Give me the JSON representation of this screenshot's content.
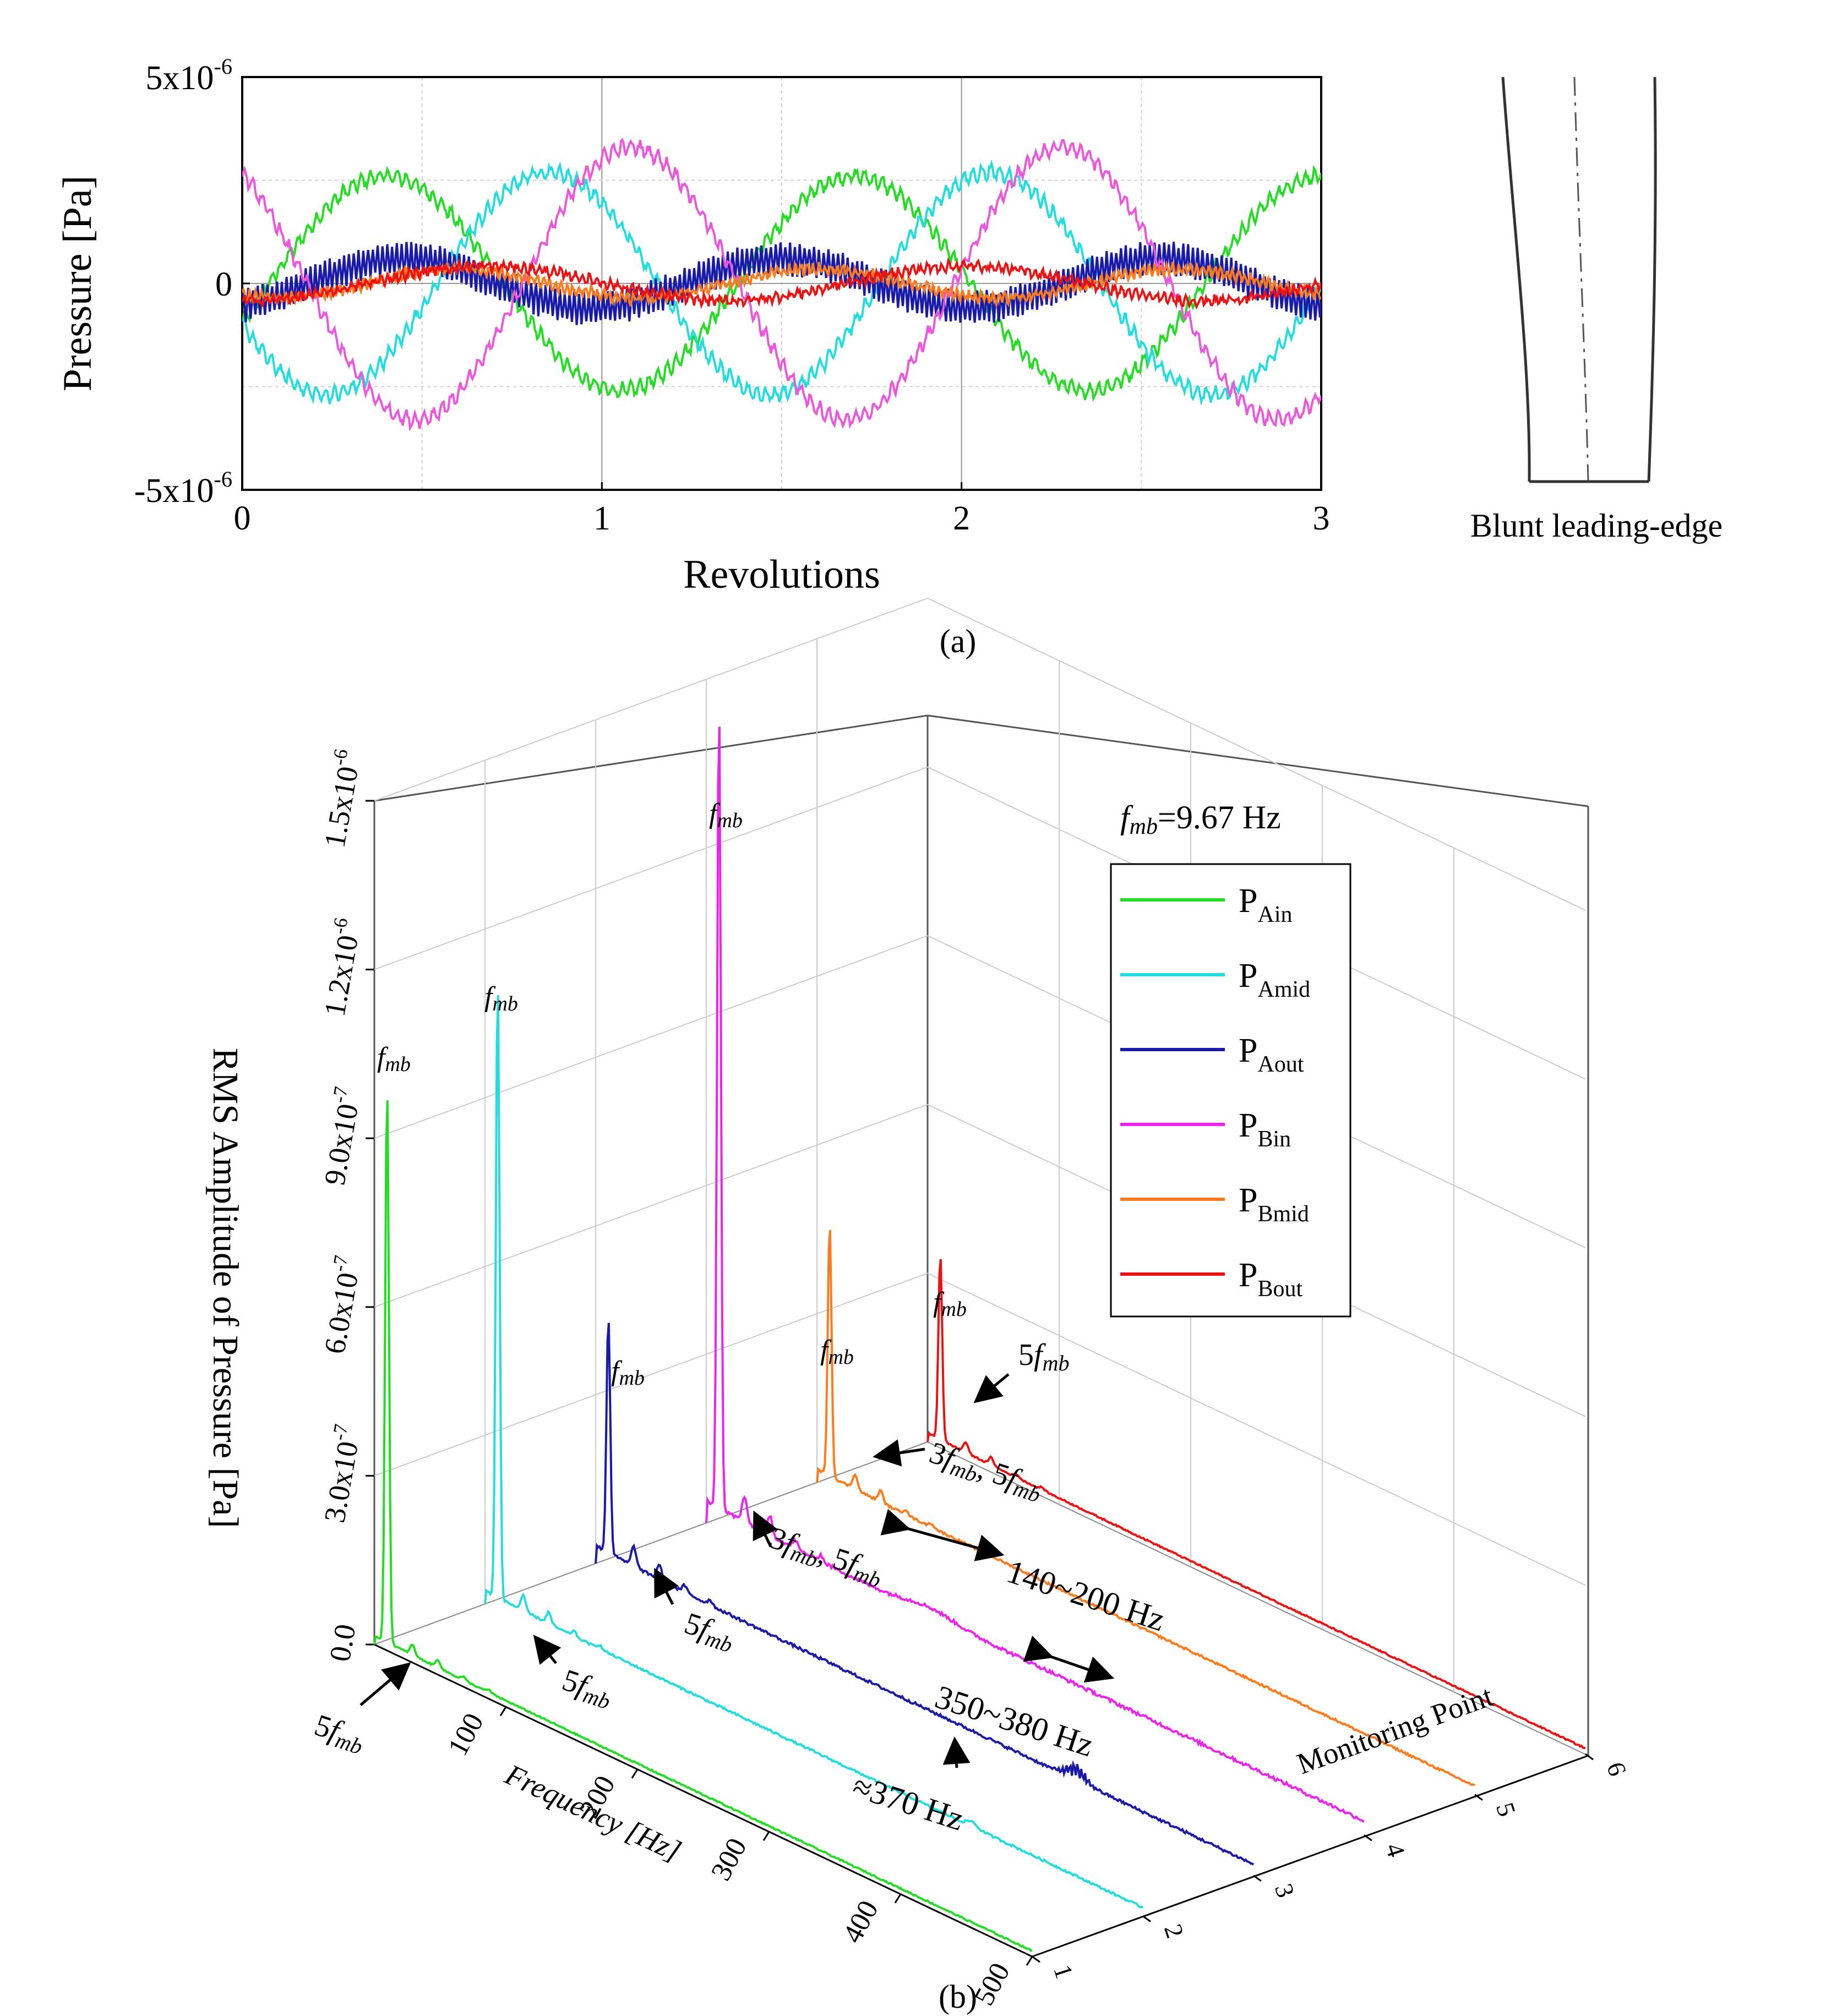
{
  "chart_data": [
    {
      "id": "a",
      "type": "line",
      "xlabel": "Revolutions",
      "ylabel": "Pressure [Pa]",
      "xlim": [
        0,
        3
      ],
      "ylim": [
        -5e-06,
        5e-06
      ],
      "xticks": [
        "0",
        "1",
        "2",
        "3"
      ],
      "yticks": [
        {
          "value": 5e-06,
          "mantissa": "5x10",
          "exp": "-6"
        },
        {
          "value": 0,
          "mantissa": "0",
          "exp": ""
        },
        {
          "value": -5e-06,
          "mantissa": "-5x10",
          "exp": "-6"
        }
      ],
      "series": [
        {
          "name": "PAin",
          "color": "#22dd22",
          "amplitude": 2.6e-06,
          "period": 1.3,
          "phase": 0.4,
          "ripple": 1.5e-07,
          "ripple_cycles": 40
        },
        {
          "name": "PAmid",
          "color": "#22dddd",
          "amplitude": 2.7e-06,
          "period": 1.23,
          "phase": 0.85,
          "ripple": 1.5e-07,
          "ripple_cycles": 40
        },
        {
          "name": "PAout",
          "color": "#1a1aaa",
          "amplitude": 6e-07,
          "period": 1.05,
          "phase": 1.5,
          "ripple": 3.5e-07,
          "ripple_cycles": 75
        },
        {
          "name": "PBin",
          "color": "#ee55dd",
          "amplitude": 3.3e-06,
          "period": 1.2,
          "phase": 1.08,
          "ripple": 1.5e-07,
          "ripple_cycles": 40
        },
        {
          "name": "PBmid",
          "color": "#ff7a1a",
          "amplitude": 3.5e-07,
          "period": 1.0,
          "phase": 0.6,
          "ripple": 1e-07,
          "ripple_cycles": 60
        },
        {
          "name": "PBout",
          "color": "#ee1111",
          "amplitude": 4.2e-07,
          "period": 1.33,
          "phase": 0.68,
          "ripple": 8e-08,
          "ripple_cycles": 50
        }
      ]
    },
    {
      "id": "b",
      "type": "line3d",
      "ylabel": "RMS Amplitude of Pressure [Pa]",
      "xlabel": "Frequency [Hz]",
      "zlabel": "Monitoring Point",
      "xlim": [
        0,
        500
      ],
      "ylim": [
        0,
        1.5e-06
      ],
      "zlim": [
        1,
        6
      ],
      "xticks": [
        "100",
        "200",
        "300",
        "400",
        "500"
      ],
      "zticks": [
        "1",
        "2",
        "3",
        "4",
        "5",
        "6"
      ],
      "yticks": [
        {
          "mantissa": "0.0",
          "exp": ""
        },
        {
          "mantissa": "3.0x10",
          "exp": "-7"
        },
        {
          "mantissa": "6.0x10",
          "exp": "-7"
        },
        {
          "mantissa": "9.0x10",
          "exp": "-7"
        },
        {
          "mantissa": "1.2x10",
          "exp": "-6"
        },
        {
          "mantissa": "1.5x10",
          "exp": "-6"
        }
      ],
      "fmb_value": "=9.67 Hz",
      "series": [
        {
          "name": "P",
          "sub": "Ain",
          "color": "#22dd22",
          "monitoring_point": 1,
          "peak_rms": 9.9e-07,
          "floor_rms": 1e-08
        },
        {
          "name": "P",
          "sub": "Amid",
          "color": "#22dddd",
          "monitoring_point": 2,
          "peak_rms": 1.1e-06,
          "floor_rms": 1.5e-08
        },
        {
          "name": "P",
          "sub": "Aout",
          "color": "#1a1aaa",
          "monitoring_point": 3,
          "peak_rms": 4.2e-07,
          "floor_rms": 2e-08
        },
        {
          "name": "P",
          "sub": "Bin",
          "color": "#ee22ee",
          "monitoring_point": 4,
          "peak_rms": 1.43e-06,
          "floor_rms": 2.5e-08
        },
        {
          "name": "P",
          "sub": "Bmid",
          "color": "#ff7a1a",
          "monitoring_point": 5,
          "peak_rms": 4.5e-07,
          "floor_rms": 1.5e-08
        },
        {
          "name": "P",
          "sub": "Bout",
          "color": "#ee1111",
          "monitoring_point": 6,
          "peak_rms": 3.3e-07,
          "floor_rms": 1e-08
        }
      ],
      "annotations": [
        {
          "text": "f",
          "sub": "mb"
        },
        {
          "prefix": "5",
          "text": "f",
          "sub": "mb"
        },
        {
          "prefix": "3",
          "text": "f",
          "sub": "mb",
          "sep": ", ",
          "prefix2": "5",
          "text2": "f",
          "sub2": "mb"
        },
        {
          "text": "140~200 Hz"
        },
        {
          "text": "350~380 Hz"
        },
        {
          "text": "≈370 Hz"
        }
      ]
    }
  ],
  "inset": {
    "caption": "Blunt leading-edge"
  },
  "captions": {
    "a": "(a)",
    "b": "(b)"
  }
}
